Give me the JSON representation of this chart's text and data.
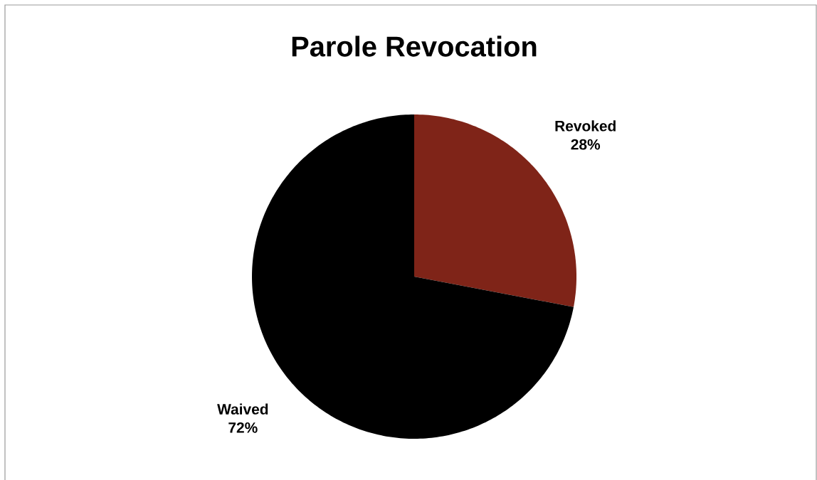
{
  "chart_data": {
    "type": "pie",
    "title": "Parole Revocation",
    "categories": [
      "Revoked",
      "Waived"
    ],
    "values": [
      28,
      72
    ],
    "colors": [
      "#7f2418",
      "#000000"
    ],
    "value_labels": [
      "28%",
      "72%"
    ]
  }
}
